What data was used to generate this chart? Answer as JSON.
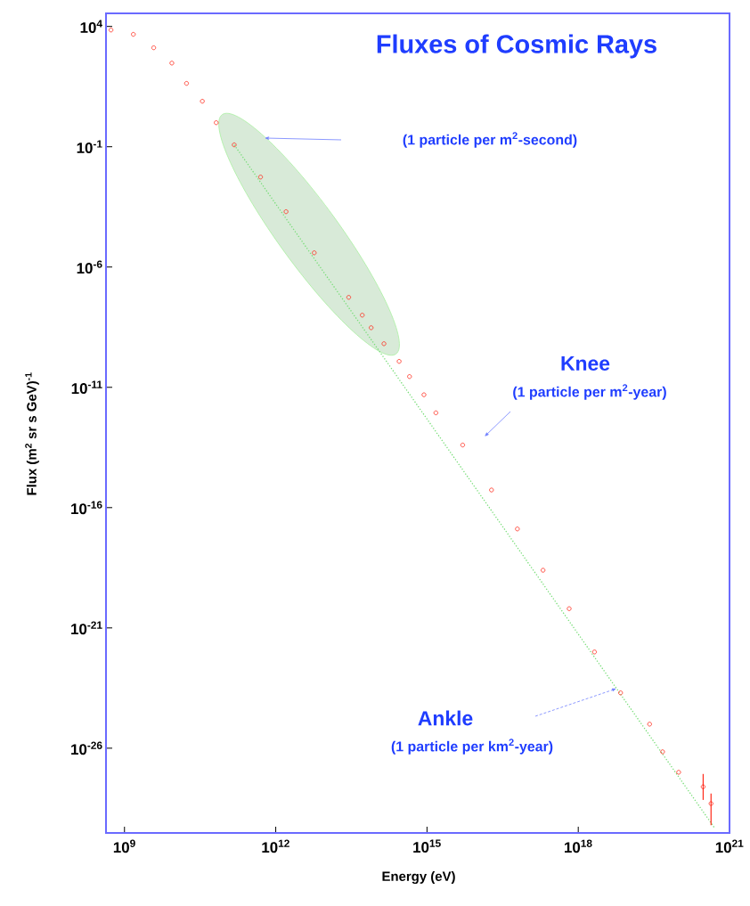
{
  "chart_data": {
    "type": "scatter",
    "title": "Fluxes of Cosmic Rays",
    "xlabel": "Energy (eV)",
    "ylabel": "Flux (m$^{2}$ sr s GeV)$^{-1}$",
    "annotations": [
      "(1 particle per m$^{2}$-second)",
      "Knee",
      "(1 particle per m$^{2}$-year)",
      "Ankle",
      "(1 particle per km$^{2}$-year)"
    ],
    "log": "xy",
    "marker": "circle",
    "xlim": [
      430000000.0,
      1e+21
    ],
    "ylim": [
      3e-30,
      35000.0
    ],
    "xticks": [
      {
        "value": 1000000000.0,
        "label": "10$^{9}$"
      },
      {
        "value": 1000000000000.0,
        "label": "10$^{12}$"
      },
      {
        "value": 1000000000000000.0,
        "label": "10$^{15}$"
      },
      {
        "value": 1e+18,
        "label": "10$^{18}$"
      },
      {
        "value": 1e+21,
        "label": "10$^{21}$"
      }
    ],
    "yticks": [
      {
        "value": 10000.0,
        "label": "10$^{4}$"
      },
      {
        "value": 0.1,
        "label": "10$^{-1}$"
      },
      {
        "value": 1e-06,
        "label": "10$^{-6}$"
      },
      {
        "value": 1e-11,
        "label": "10$^{-11}$"
      },
      {
        "value": 1e-16,
        "label": "10$^{-16}$"
      },
      {
        "value": 1e-21,
        "label": "10$^{-21}$"
      },
      {
        "value": 1e-26,
        "label": "10$^{-26}$"
      }
    ],
    "series": [
      {
        "type": "line",
        "color": "#77dd77",
        "line_style": "dotted",
        "marker": "none",
        "x": [
          150000000000.0,
          5e+20
        ],
        "values": [
          0.12,
          5e-30
        ]
      },
      {
        "color": "#ff2a1a",
        "x": [
          540000000.0,
          1500000000.0,
          3800000000.0,
          8700000000.0,
          17000000000.0,
          35000000000.0,
          66000000000.0,
          150000000000.0,
          500000000000.0,
          1600000000000.0,
          5800000000000.0,
          28000000000000.0,
          52000000000000.0,
          78000000000000.0,
          140000000000000.0,
          280000000000000.0,
          450000000000000.0,
          870000000000000.0,
          1500000000000000.0,
          5100000000000000.0,
          1.9e+16,
          6.2e+16,
          2e+17,
          6.6e+17,
          2.1e+18,
          6.9e+18,
          2.6e+19,
          4.7e+19,
          9.8e+19,
          3e+20,
          4.3e+20
        ],
        "values": [
          7100.0,
          4700.0,
          1300.0,
          300.0,
          43,
          7.8,
          1.0,
          0.12,
          0.0055,
          0.0002,
          3.9e-06,
          5.5e-08,
          1e-08,
          3e-09,
          6.5e-10,
          1.2e-10,
          2.8e-11,
          4.9e-12,
          8.7e-13,
          4e-14,
          5.4e-16,
          1.3e-17,
          2.5e-19,
          6.3e-21,
          1e-22,
          2e-24,
          1e-25,
          7.1e-27,
          1e-27,
          2.5e-28,
          5e-29
        ],
        "errors": [
          null,
          null,
          null,
          null,
          null,
          null,
          null,
          null,
          null,
          null,
          null,
          null,
          null,
          null,
          null,
          null,
          null,
          null,
          null,
          null,
          null,
          null,
          null,
          null,
          null,
          null,
          null,
          null,
          null,
          [
            7.1e-29,
            8.5e-28
          ],
          [
            6.3e-30,
            1.3e-28
          ]
        ]
      }
    ]
  }
}
